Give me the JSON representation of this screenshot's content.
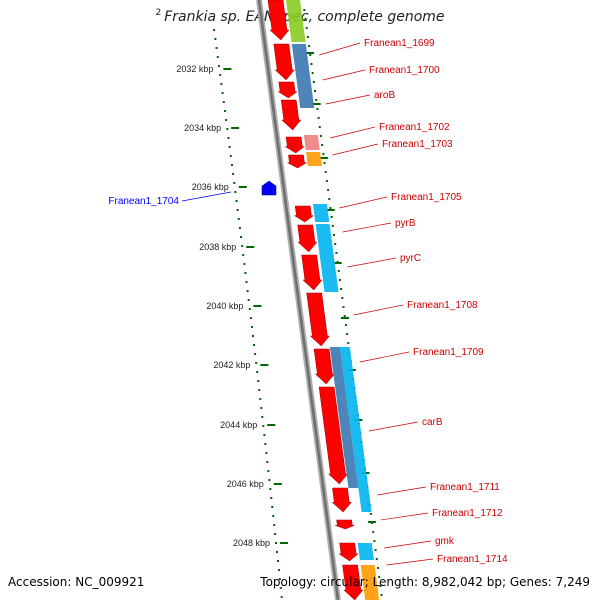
{
  "title": {
    "prefix": "2",
    "organism": "Frankia sp. EAN1pec, complete genome"
  },
  "axis": {
    "ticks": [
      "2032 kbp",
      "2034 kbp",
      "2036 kbp",
      "2038 kbp",
      "2040 kbp",
      "2042 kbp",
      "2044 kbp",
      "2046 kbp",
      "2048 kbp"
    ]
  },
  "genes": [
    {
      "label": "Franean1_1699",
      "color": "#cc0000",
      "strand": "forward"
    },
    {
      "label": "Franean1_1700",
      "color": "#cc0000",
      "strand": "forward"
    },
    {
      "label": "aroB",
      "color": "#cc0000",
      "strand": "forward"
    },
    {
      "label": "Franean1_1702",
      "color": "#cc0000",
      "strand": "forward"
    },
    {
      "label": "Franean1_1703",
      "color": "#cc0000",
      "strand": "forward"
    },
    {
      "label": "Franean1_1704",
      "color": "#0000cc",
      "strand": "reverse"
    },
    {
      "label": "Franean1_1705",
      "color": "#cc0000",
      "strand": "forward"
    },
    {
      "label": "pyrB",
      "color": "#cc0000",
      "strand": "forward"
    },
    {
      "label": "pyrC",
      "color": "#cc0000",
      "strand": "forward"
    },
    {
      "label": "Franean1_1708",
      "color": "#cc0000",
      "strand": "forward"
    },
    {
      "label": "Franean1_1709",
      "color": "#cc0000",
      "strand": "forward"
    },
    {
      "label": "carB",
      "color": "#cc0000",
      "strand": "forward"
    },
    {
      "label": "Franean1_1711",
      "color": "#cc0000",
      "strand": "forward"
    },
    {
      "label": "Franean1_1712",
      "color": "#cc0000",
      "strand": "forward"
    },
    {
      "label": "gmk",
      "color": "#cc0000",
      "strand": "forward"
    },
    {
      "label": "Franean1_1714",
      "color": "#cc0000",
      "strand": "forward"
    }
  ],
  "colors": {
    "forward_gene": "#ff0000",
    "reverse_gene": "#0000ff",
    "backbone": "#888888",
    "tick": "#006600",
    "cog_blue": "#3a78b0",
    "cog_cyan": "#00b4f0",
    "cog_pink": "#f08080",
    "cog_orange": "#ff9900",
    "cog_green": "#88cc22"
  },
  "footer": {
    "accession_label": "Accession:",
    "accession": "NC_009921",
    "topology_label": "Topology:",
    "topology": "circular;",
    "length_label": "Length:",
    "length": "8,982,042 bp;",
    "genes_label": "Genes:",
    "genes": "7,249"
  }
}
